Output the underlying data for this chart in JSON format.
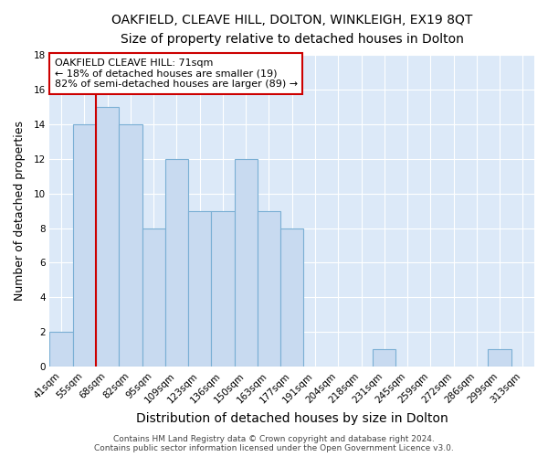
{
  "title": "OAKFIELD, CLEAVE HILL, DOLTON, WINKLEIGH, EX19 8QT",
  "subtitle": "Size of property relative to detached houses in Dolton",
  "xlabel": "Distribution of detached houses by size in Dolton",
  "ylabel": "Number of detached properties",
  "bins": [
    "41sqm",
    "55sqm",
    "68sqm",
    "82sqm",
    "95sqm",
    "109sqm",
    "123sqm",
    "136sqm",
    "150sqm",
    "163sqm",
    "177sqm",
    "191sqm",
    "204sqm",
    "218sqm",
    "231sqm",
    "245sqm",
    "259sqm",
    "272sqm",
    "286sqm",
    "299sqm",
    "313sqm"
  ],
  "counts": [
    2,
    14,
    15,
    14,
    8,
    12,
    9,
    9,
    12,
    9,
    8,
    0,
    0,
    0,
    1,
    0,
    0,
    0,
    0,
    1,
    0
  ],
  "bar_color": "#c8daf0",
  "bar_edge_color": "#7aafd4",
  "highlight_bar_index": 2,
  "highlight_line_color": "#cc0000",
  "annotation_box_text": "OAKFIELD CLEAVE HILL: 71sqm\n← 18% of detached houses are smaller (19)\n82% of semi-detached houses are larger (89) →",
  "annotation_box_color": "#ffffff",
  "annotation_box_edge_color": "#cc0000",
  "ylim": [
    0,
    18
  ],
  "yticks": [
    0,
    2,
    4,
    6,
    8,
    10,
    12,
    14,
    16,
    18
  ],
  "footer": "Contains HM Land Registry data © Crown copyright and database right 2024.\nContains public sector information licensed under the Open Government Licence v3.0.",
  "background_color": "#dce9f8",
  "grid_color": "#ffffff",
  "title_fontsize": 10,
  "subtitle_fontsize": 9.5,
  "xlabel_fontsize": 10,
  "ylabel_fontsize": 9,
  "tick_fontsize": 7.5,
  "annotation_fontsize": 8,
  "footer_fontsize": 6.5
}
